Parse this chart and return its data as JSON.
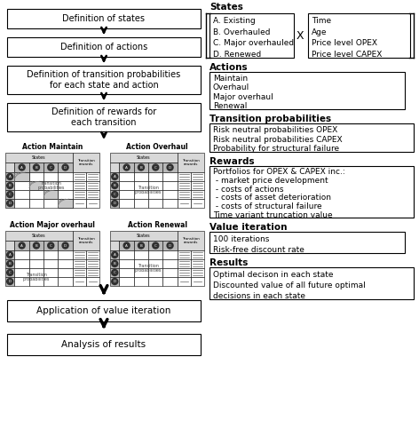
{
  "left_boxes": [
    "Definition of states",
    "Definition of actions",
    "Definition of transition probabilities\nfor each state and action",
    "Definition of rewards for\neach transition"
  ],
  "bottom_boxes": [
    "Application of value iteration",
    "Analysis of results"
  ],
  "action_labels": [
    "Action Maintain",
    "Action Overhaul",
    "Action Major overhaul",
    "Action Renewal"
  ],
  "states_header": "States",
  "actions_header": "Actions",
  "transition_header": "Transition probabilities",
  "rewards_header": "Rewards",
  "value_header": "Value iteration",
  "results_header": "Results",
  "states_left": "A. Existing\nB. Overhauled\nC. Major overhauled\nD. Renewed",
  "states_right": "Time\nAge\nPrice level OPEX\nPrice level CAPEX",
  "actions_content": "Maintain\nOverhaul\nMajor overhaul\nRenewal",
  "transition_content": "Risk neutral probabilities OPEX\nRisk neutral probabilities CAPEX\nProbability for structural failure",
  "rewards_content": "Portfolios for OPEX & CAPEX inc.:\n - market price development\n - costs of actions\n - costs of asset deterioration\n - costs of structural failure\nTime variant truncation value",
  "value_content": "100 iterations\nRisk-free discount rate",
  "results_content": "Optimal decison in each state\nDiscounted value of all future optimal\ndecisions in each state",
  "bg_color": "#ffffff",
  "box_edge_color": "#000000",
  "arrow_color": "#000000",
  "grid_fill": "#d8d8d8",
  "grid_dark": "#a0a0a0"
}
